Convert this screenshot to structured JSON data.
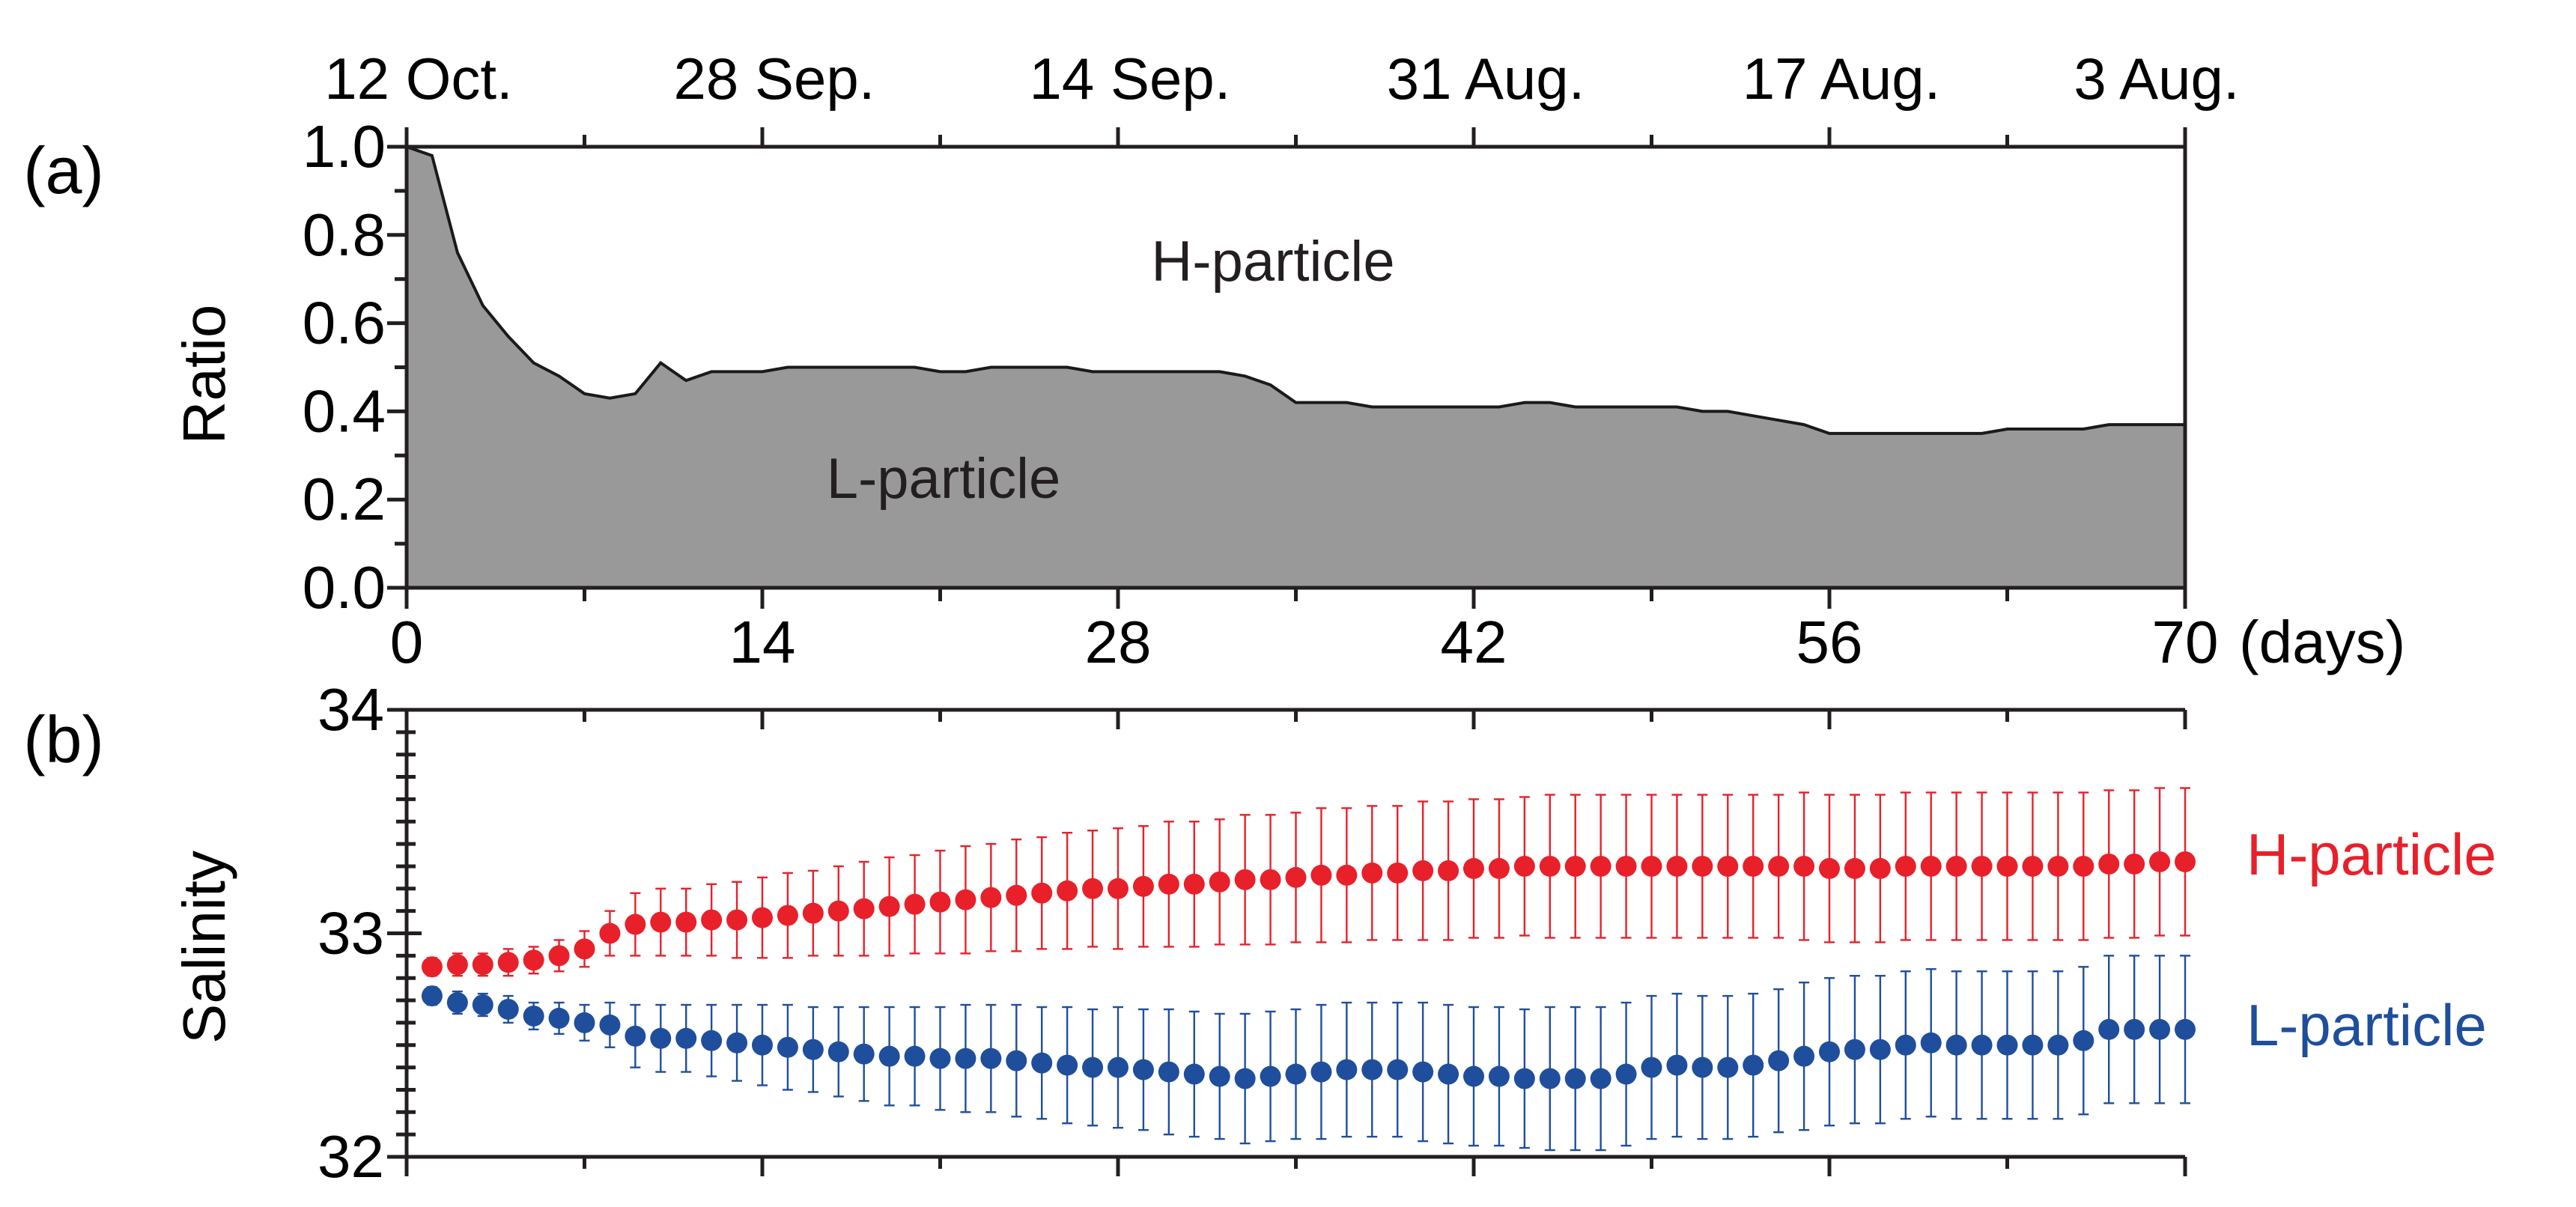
{
  "chart_data": [
    {
      "panel_label": "(a)",
      "type": "area",
      "ylabel": "Ratio",
      "xlabel": "(days)",
      "xlim": [
        0,
        70
      ],
      "ylim": [
        0,
        1
      ],
      "x_ticks": [
        0,
        14,
        28,
        42,
        56,
        70
      ],
      "x_tick_labels": [
        "0",
        "14",
        "28",
        "42",
        "56",
        "70"
      ],
      "y_ticks": [
        0,
        0.2,
        0.4,
        0.6,
        0.8,
        1
      ],
      "y_tick_labels": [
        "0.0",
        "0.2",
        "0.4",
        "0.6",
        "0.8",
        "1.0"
      ],
      "top_axis_dates": [
        "12 Oct.",
        "28 Sep.",
        "14 Sep.",
        "31 Aug.",
        "17 Aug.",
        "3 Aug."
      ],
      "area_labels": {
        "upper": "H-particle",
        "lower": "L-particle"
      },
      "colors": {
        "fill": "#999999",
        "line": "#1a1a1a",
        "axis": "#231f20"
      },
      "series": [
        {
          "name": "L-particle",
          "x": [
            0,
            1,
            2,
            3,
            4,
            5,
            6,
            7,
            8,
            9,
            10,
            11,
            12,
            13,
            14,
            15,
            16,
            17,
            18,
            19,
            20,
            21,
            22,
            23,
            24,
            25,
            26,
            27,
            28,
            29,
            30,
            31,
            32,
            33,
            34,
            35,
            36,
            37,
            38,
            39,
            40,
            41,
            42,
            43,
            44,
            45,
            46,
            47,
            48,
            49,
            50,
            51,
            52,
            53,
            54,
            55,
            56,
            57,
            58,
            59,
            60,
            61,
            62,
            63,
            64,
            65,
            66,
            67,
            68,
            69,
            70
          ],
          "values": [
            1,
            0.98,
            0.76,
            0.64,
            0.57,
            0.51,
            0.48,
            0.44,
            0.43,
            0.44,
            0.51,
            0.47,
            0.49,
            0.49,
            0.49,
            0.5,
            0.5,
            0.5,
            0.5,
            0.5,
            0.5,
            0.49,
            0.49,
            0.5,
            0.5,
            0.5,
            0.5,
            0.49,
            0.49,
            0.49,
            0.49,
            0.49,
            0.49,
            0.48,
            0.46,
            0.42,
            0.42,
            0.42,
            0.41,
            0.41,
            0.41,
            0.41,
            0.41,
            0.41,
            0.42,
            0.42,
            0.41,
            0.41,
            0.41,
            0.41,
            0.41,
            0.4,
            0.4,
            0.39,
            0.38,
            0.37,
            0.35,
            0.35,
            0.35,
            0.35,
            0.35,
            0.35,
            0.35,
            0.36,
            0.36,
            0.36,
            0.36,
            0.37,
            0.37,
            0.37,
            0.37
          ]
        }
      ]
    },
    {
      "panel_label": "(b)",
      "type": "scatter",
      "ylabel": "Salinity",
      "xlim": [
        0,
        70
      ],
      "ylim": [
        32,
        34
      ],
      "y_ticks": [
        32,
        33,
        34
      ],
      "y_tick_labels": [
        "32",
        "33",
        "34"
      ],
      "colors": {
        "axis": "#231f20"
      },
      "series": [
        {
          "name": "H-particle",
          "color": "#e8202a",
          "x": [
            1,
            2,
            3,
            4,
            5,
            6,
            7,
            8,
            9,
            10,
            11,
            12,
            13,
            14,
            15,
            16,
            17,
            18,
            19,
            20,
            21,
            22,
            23,
            24,
            25,
            26,
            27,
            28,
            29,
            30,
            31,
            32,
            33,
            34,
            35,
            36,
            37,
            38,
            39,
            40,
            41,
            42,
            43,
            44,
            45,
            46,
            47,
            48,
            49,
            50,
            51,
            52,
            53,
            54,
            55,
            56,
            57,
            58,
            59,
            60,
            61,
            62,
            63,
            64,
            65,
            66,
            67,
            68,
            69,
            70
          ],
          "values": [
            32.85,
            32.86,
            32.86,
            32.87,
            32.88,
            32.9,
            32.93,
            33,
            33.04,
            33.05,
            33.05,
            33.06,
            33.06,
            33.07,
            33.08,
            33.09,
            33.1,
            33.11,
            33.12,
            33.13,
            33.14,
            33.15,
            33.16,
            33.17,
            33.18,
            33.19,
            33.2,
            33.2,
            33.21,
            33.22,
            33.22,
            33.23,
            33.24,
            33.24,
            33.25,
            33.26,
            33.26,
            33.27,
            33.27,
            33.28,
            33.28,
            33.29,
            33.29,
            33.3,
            33.3,
            33.3,
            33.3,
            33.3,
            33.3,
            33.3,
            33.3,
            33.3,
            33.3,
            33.3,
            33.3,
            33.29,
            33.29,
            33.29,
            33.3,
            33.3,
            33.3,
            33.3,
            33.3,
            33.3,
            33.3,
            33.3,
            33.31,
            33.31,
            33.32,
            33.32
          ],
          "errors": [
            0.04,
            0.05,
            0.05,
            0.06,
            0.06,
            0.07,
            0.08,
            0.1,
            0.14,
            0.15,
            0.15,
            0.16,
            0.17,
            0.18,
            0.19,
            0.19,
            0.2,
            0.21,
            0.22,
            0.22,
            0.23,
            0.24,
            0.24,
            0.25,
            0.25,
            0.26,
            0.26,
            0.27,
            0.27,
            0.28,
            0.28,
            0.28,
            0.29,
            0.29,
            0.29,
            0.3,
            0.3,
            0.3,
            0.3,
            0.31,
            0.31,
            0.31,
            0.31,
            0.31,
            0.32,
            0.32,
            0.32,
            0.32,
            0.32,
            0.32,
            0.32,
            0.32,
            0.32,
            0.32,
            0.33,
            0.33,
            0.33,
            0.33,
            0.33,
            0.33,
            0.33,
            0.33,
            0.33,
            0.33,
            0.33,
            0.33,
            0.33,
            0.33,
            0.33,
            0.33
          ]
        },
        {
          "name": "L-particle",
          "color": "#1f4e9c",
          "x": [
            1,
            2,
            3,
            4,
            5,
            6,
            7,
            8,
            9,
            10,
            11,
            12,
            13,
            14,
            15,
            16,
            17,
            18,
            19,
            20,
            21,
            22,
            23,
            24,
            25,
            26,
            27,
            28,
            29,
            30,
            31,
            32,
            33,
            34,
            35,
            36,
            37,
            38,
            39,
            40,
            41,
            42,
            43,
            44,
            45,
            46,
            47,
            48,
            49,
            50,
            51,
            52,
            53,
            54,
            55,
            56,
            57,
            58,
            59,
            60,
            61,
            62,
            63,
            64,
            65,
            66,
            67,
            68,
            69,
            70
          ],
          "values": [
            32.72,
            32.69,
            32.68,
            32.66,
            32.63,
            32.62,
            32.6,
            32.59,
            32.54,
            32.53,
            32.53,
            32.52,
            32.51,
            32.5,
            32.49,
            32.48,
            32.47,
            32.46,
            32.45,
            32.45,
            32.44,
            32.44,
            32.44,
            32.43,
            32.42,
            32.41,
            32.4,
            32.4,
            32.39,
            32.38,
            32.37,
            32.36,
            32.35,
            32.36,
            32.37,
            32.38,
            32.39,
            32.39,
            32.39,
            32.38,
            32.37,
            32.36,
            32.36,
            32.35,
            32.35,
            32.35,
            32.35,
            32.37,
            32.4,
            32.41,
            32.4,
            32.4,
            32.41,
            32.43,
            32.45,
            32.47,
            32.48,
            32.48,
            32.5,
            32.51,
            32.5,
            32.5,
            32.5,
            32.5,
            32.5,
            32.52,
            32.57,
            32.57,
            32.57,
            32.57
          ]
        }
      ]
    }
  ]
}
